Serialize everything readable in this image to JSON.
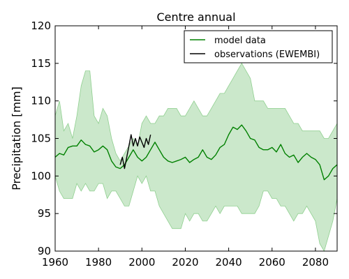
{
  "chart_data": {
    "type": "line",
    "title": "Centre annual",
    "xlabel": "",
    "ylabel": "Precipitation [mm]",
    "xlim": [
      1960,
      2090
    ],
    "ylim": [
      90,
      120
    ],
    "xticks": [
      "1960",
      "1980",
      "2000",
      "2020",
      "2040",
      "2060",
      "2080"
    ],
    "yticks": [
      "90",
      "95",
      "100",
      "105",
      "110",
      "115",
      "120"
    ],
    "legend_position": "top-right",
    "grid": false,
    "colors": {
      "model": "#008000",
      "band_fill": "#a8d8a8",
      "band_edge": "#8fcf8f",
      "observations": "#000000"
    },
    "band": {
      "name": "",
      "x": [
        1960,
        1962,
        1964,
        1966,
        1968,
        1970,
        1972,
        1974,
        1976,
        1978,
        1980,
        1982,
        1984,
        1986,
        1988,
        1990,
        1992,
        1994,
        1996,
        1998,
        2000,
        2002,
        2004,
        2006,
        2008,
        2010,
        2012,
        2014,
        2016,
        2018,
        2020,
        2022,
        2024,
        2026,
        2028,
        2030,
        2032,
        2034,
        2036,
        2038,
        2040,
        2042,
        2044,
        2046,
        2048,
        2050,
        2052,
        2054,
        2056,
        2058,
        2060,
        2062,
        2064,
        2066,
        2068,
        2070,
        2072,
        2074,
        2076,
        2078,
        2080,
        2082,
        2084,
        2086,
        2088,
        2090
      ],
      "upper": [
        108,
        110,
        106,
        107,
        105,
        108,
        112,
        114,
        114,
        108,
        107,
        109,
        108,
        105,
        103,
        102,
        103,
        104,
        105,
        104,
        107,
        108,
        107,
        107,
        108,
        108,
        109,
        109,
        109,
        108,
        108,
        109,
        110,
        109,
        108,
        108,
        109,
        110,
        111,
        111,
        112,
        113,
        114,
        115,
        114,
        113,
        110,
        110,
        110,
        109,
        109,
        109,
        109,
        109,
        108,
        107,
        107,
        106,
        106,
        106,
        106,
        106,
        105,
        105,
        106,
        107
      ],
      "lower": [
        100,
        98,
        97,
        97,
        97,
        99,
        98,
        99,
        98,
        98,
        99,
        99,
        97,
        98,
        98,
        97,
        96,
        96,
        98,
        100,
        99,
        100,
        98,
        98,
        96,
        95,
        94,
        93,
        93,
        93,
        95,
        94,
        95,
        95,
        94,
        94,
        95,
        96,
        95,
        96,
        96,
        96,
        96,
        95,
        95,
        95,
        95,
        96,
        98,
        98,
        97,
        97,
        96,
        96,
        95,
        94,
        95,
        95,
        96,
        95,
        94,
        91,
        90,
        92,
        94,
        97
      ]
    },
    "series": [
      {
        "name": "model data",
        "x": [
          1960,
          1962,
          1964,
          1966,
          1968,
          1970,
          1972,
          1974,
          1976,
          1978,
          1980,
          1982,
          1984,
          1986,
          1988,
          1990,
          1992,
          1994,
          1996,
          1998,
          2000,
          2002,
          2004,
          2006,
          2008,
          2010,
          2012,
          2014,
          2016,
          2018,
          2020,
          2022,
          2024,
          2026,
          2028,
          2030,
          2032,
          2034,
          2036,
          2038,
          2040,
          2042,
          2044,
          2046,
          2048,
          2050,
          2052,
          2054,
          2056,
          2058,
          2060,
          2062,
          2064,
          2066,
          2068,
          2070,
          2072,
          2074,
          2076,
          2078,
          2080,
          2082,
          2084,
          2086,
          2088,
          2090
        ],
        "values": [
          102.5,
          103.0,
          102.8,
          103.8,
          104.0,
          104.0,
          104.8,
          104.2,
          104.0,
          103.2,
          103.5,
          104.0,
          103.5,
          102.0,
          101.2,
          101.0,
          101.5,
          102.5,
          103.5,
          102.5,
          102.0,
          102.5,
          103.5,
          104.5,
          103.5,
          102.5,
          102.0,
          101.8,
          102.0,
          102.2,
          102.5,
          101.8,
          102.2,
          102.5,
          103.5,
          102.5,
          102.2,
          102.8,
          103.8,
          104.2,
          105.5,
          106.5,
          106.2,
          106.8,
          106.0,
          105.0,
          104.8,
          103.8,
          103.5,
          103.5,
          103.8,
          103.2,
          104.2,
          103.0,
          102.5,
          102.8,
          101.8,
          102.5,
          103.0,
          102.5,
          102.2,
          101.5,
          99.5,
          100.0,
          101.0,
          101.5
        ]
      },
      {
        "name": "observations (EWEMBI)",
        "x": [
          1990,
          1991,
          1992,
          1993,
          1994,
          1995,
          1996,
          1997,
          1998,
          1999,
          2000,
          2001,
          2002,
          2003,
          2004
        ],
        "values": [
          101.5,
          102.5,
          101.0,
          102.5,
          104.0,
          105.5,
          104.0,
          105.0,
          104.0,
          105.2,
          104.5,
          103.8,
          105.0,
          104.2,
          105.5
        ]
      }
    ]
  }
}
